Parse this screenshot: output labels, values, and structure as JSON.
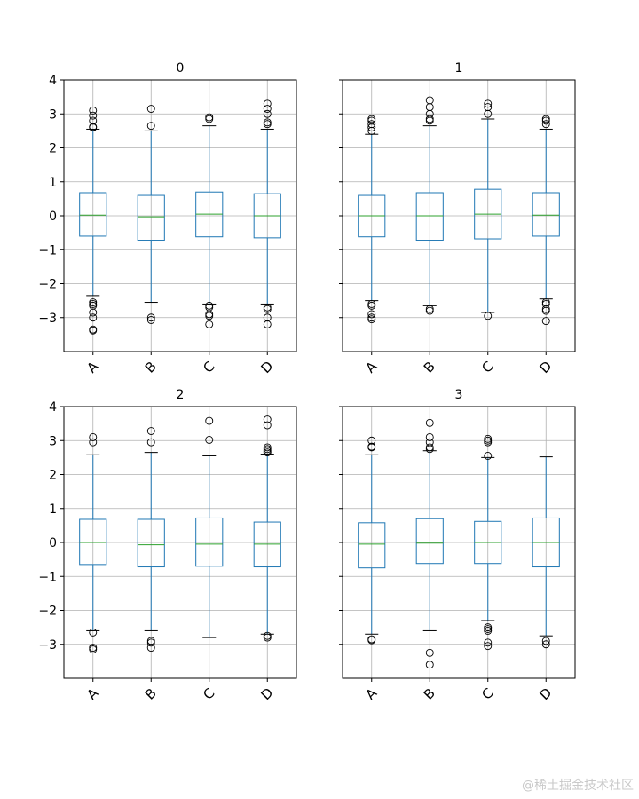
{
  "figure": {
    "watermark": "@稀土掘金技术社区"
  },
  "style": {
    "box_color": "#1f77b4",
    "median_color": "#2ca02c",
    "flier_color": "#000000",
    "grid_color": "#b0b0b0",
    "axes_color": "#000000",
    "background": "#ffffff"
  },
  "chart_data": [
    {
      "type": "boxplot",
      "title": "0",
      "categories": [
        "A",
        "B",
        "C",
        "D"
      ],
      "ylim": [
        -4,
        4
      ],
      "yticks": [
        -3,
        -2,
        -1,
        0,
        1,
        2,
        3,
        4
      ],
      "ytick_labels": [
        "−3",
        "−2",
        "−1",
        "0",
        "1",
        "2",
        "3",
        "4"
      ],
      "ytick_labels_visible": true,
      "grid": true,
      "boxes": [
        {
          "q1": -0.6,
          "median": 0.02,
          "q3": 0.68,
          "whisker_low": -2.35,
          "whisker_high": 2.55,
          "fliers": [
            2.6,
            2.62,
            2.8,
            2.95,
            3.1,
            -2.55,
            -2.6,
            -2.65,
            -2.85,
            -3.0,
            -3.35,
            -3.38
          ]
        },
        {
          "q1": -0.72,
          "median": -0.03,
          "q3": 0.6,
          "whisker_low": -2.55,
          "whisker_high": 2.5,
          "fliers": [
            2.65,
            3.15,
            -3.0,
            -3.07
          ]
        },
        {
          "q1": -0.62,
          "median": 0.05,
          "q3": 0.7,
          "whisker_low": -2.6,
          "whisker_high": 2.65,
          "fliers": [
            2.85,
            2.9,
            -2.65,
            -2.7,
            -2.9,
            -2.95,
            -3.2
          ]
        },
        {
          "q1": -0.65,
          "median": 0.0,
          "q3": 0.65,
          "whisker_low": -2.6,
          "whisker_high": 2.55,
          "fliers": [
            2.7,
            2.75,
            3.0,
            3.15,
            3.3,
            -2.7,
            -2.75,
            -3.0,
            -3.2
          ]
        }
      ]
    },
    {
      "type": "boxplot",
      "title": "1",
      "categories": [
        "A",
        "B",
        "C",
        "D"
      ],
      "ylim": [
        -4,
        4
      ],
      "yticks": [
        -3,
        -2,
        -1,
        0,
        1,
        2,
        3,
        4
      ],
      "ytick_labels": [
        "−3",
        "−2",
        "−1",
        "0",
        "1",
        "2",
        "3",
        "4"
      ],
      "ytick_labels_visible": false,
      "grid": true,
      "boxes": [
        {
          "q1": -0.62,
          "median": 0.0,
          "q3": 0.6,
          "whisker_low": -2.5,
          "whisker_high": 2.4,
          "fliers": [
            2.5,
            2.6,
            2.7,
            2.8,
            2.85,
            -2.6,
            -2.65,
            -2.9,
            -3.0,
            -3.05
          ]
        },
        {
          "q1": -0.72,
          "median": 0.0,
          "q3": 0.68,
          "whisker_low": -2.65,
          "whisker_high": 2.65,
          "fliers": [
            2.8,
            2.85,
            3.0,
            3.2,
            3.4,
            -2.75,
            -2.8
          ]
        },
        {
          "q1": -0.68,
          "median": 0.05,
          "q3": 0.78,
          "whisker_low": -2.85,
          "whisker_high": 2.85,
          "fliers": [
            3.0,
            3.2,
            3.3,
            -2.95
          ]
        },
        {
          "q1": -0.6,
          "median": 0.02,
          "q3": 0.68,
          "whisker_low": -2.45,
          "whisker_high": 2.55,
          "fliers": [
            2.7,
            2.8,
            2.85,
            -2.55,
            -2.6,
            -2.75,
            -2.8,
            -3.1
          ]
        }
      ]
    },
    {
      "type": "boxplot",
      "title": "2",
      "categories": [
        "A",
        "B",
        "C",
        "D"
      ],
      "ylim": [
        -4,
        4
      ],
      "yticks": [
        -3,
        -2,
        -1,
        0,
        1,
        2,
        3,
        4
      ],
      "ytick_labels": [
        "−3",
        "−2",
        "−1",
        "0",
        "1",
        "2",
        "3",
        "4"
      ],
      "ytick_labels_visible": true,
      "grid": true,
      "boxes": [
        {
          "q1": -0.65,
          "median": 0.0,
          "q3": 0.68,
          "whisker_low": -2.6,
          "whisker_high": 2.58,
          "fliers": [
            2.95,
            3.1,
            -2.65,
            -3.1,
            -3.15
          ]
        },
        {
          "q1": -0.72,
          "median": -0.07,
          "q3": 0.68,
          "whisker_low": -2.6,
          "whisker_high": 2.65,
          "fliers": [
            2.95,
            3.28,
            -2.9,
            -2.95,
            -3.1
          ]
        },
        {
          "q1": -0.7,
          "median": -0.05,
          "q3": 0.72,
          "whisker_low": -2.8,
          "whisker_high": 2.55,
          "fliers": [
            3.02,
            3.58
          ]
        },
        {
          "q1": -0.72,
          "median": -0.05,
          "q3": 0.6,
          "whisker_low": -2.7,
          "whisker_high": 2.6,
          "fliers": [
            2.65,
            2.7,
            2.75,
            2.8,
            3.45,
            3.62,
            -2.75,
            -2.8
          ]
        }
      ]
    },
    {
      "type": "boxplot",
      "title": "3",
      "categories": [
        "A",
        "B",
        "C",
        "D"
      ],
      "ylim": [
        -4,
        4
      ],
      "yticks": [
        -3,
        -2,
        -1,
        0,
        1,
        2,
        3,
        4
      ],
      "ytick_labels": [
        "−3",
        "−2",
        "−1",
        "0",
        "1",
        "2",
        "3",
        "4"
      ],
      "ytick_labels_visible": false,
      "grid": true,
      "boxes": [
        {
          "q1": -0.75,
          "median": -0.05,
          "q3": 0.58,
          "whisker_low": -2.7,
          "whisker_high": 2.58,
          "fliers": [
            2.8,
            2.82,
            3.0,
            -2.85,
            -2.88
          ]
        },
        {
          "q1": -0.62,
          "median": -0.02,
          "q3": 0.7,
          "whisker_low": -2.6,
          "whisker_high": 2.7,
          "fliers": [
            2.75,
            2.8,
            2.95,
            3.1,
            3.52,
            -3.25,
            -3.6
          ]
        },
        {
          "q1": -0.62,
          "median": 0.0,
          "q3": 0.62,
          "whisker_low": -2.3,
          "whisker_high": 2.5,
          "fliers": [
            2.55,
            2.95,
            3.0,
            3.05,
            -2.5,
            -2.55,
            -2.6,
            -2.95,
            -3.05
          ]
        },
        {
          "q1": -0.72,
          "median": 0.0,
          "q3": 0.72,
          "whisker_low": -2.75,
          "whisker_high": 2.52,
          "fliers": [
            -2.9,
            -3.0
          ]
        }
      ]
    }
  ]
}
